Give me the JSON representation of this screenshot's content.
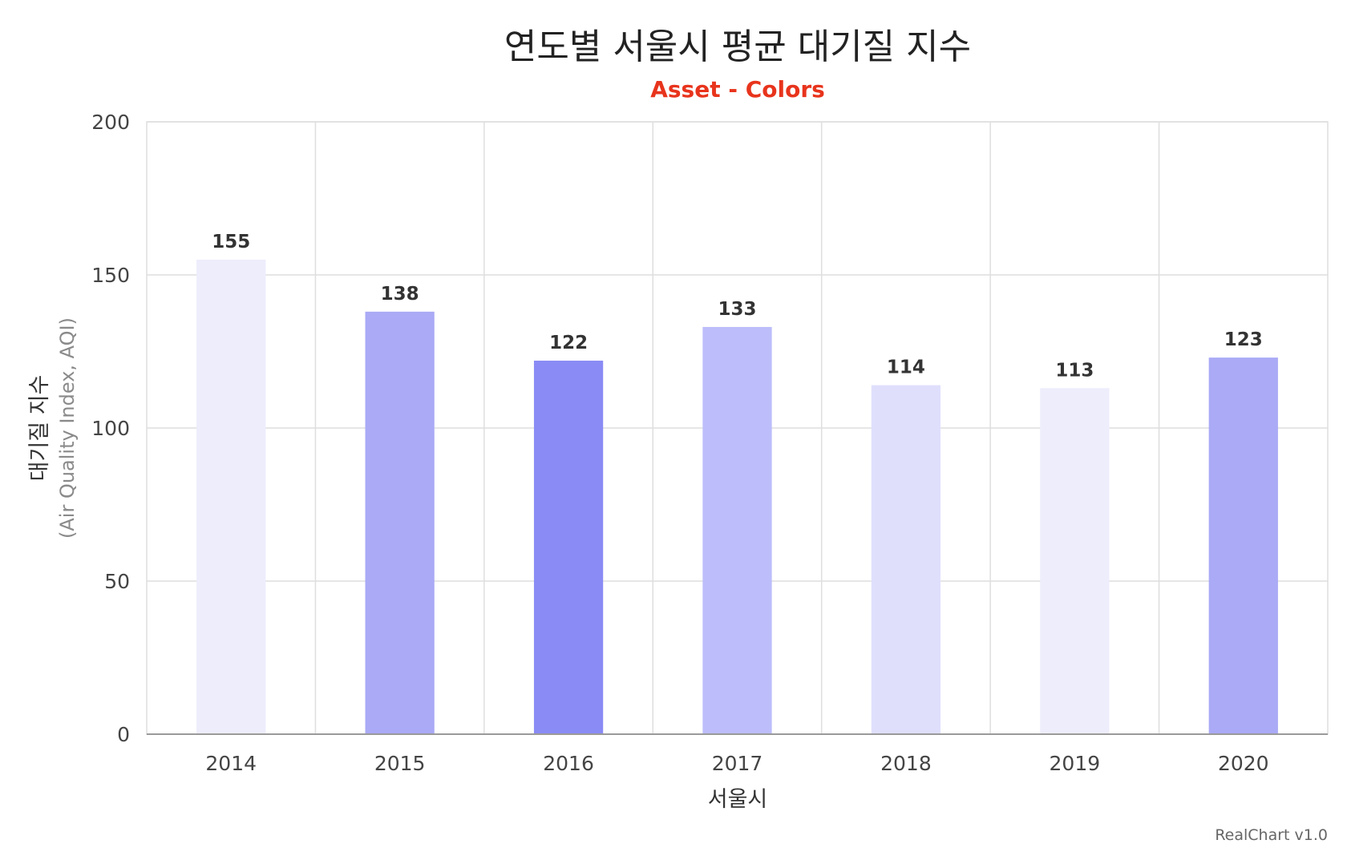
{
  "chart_data": {
    "type": "bar",
    "title": "연도별 서울시 평균 대기질 지수",
    "subtitle": "Asset - Colors",
    "categories": [
      "2014",
      "2015",
      "2016",
      "2017",
      "2018",
      "2019",
      "2020"
    ],
    "values": [
      155,
      138,
      122,
      133,
      114,
      113,
      123
    ],
    "bar_colors": [
      "#ededfc",
      "#aaaaf6",
      "#8a8bf5",
      "#bcbdfa",
      "#dfdffc",
      "#ededfc",
      "#aaaaf6"
    ],
    "xlabel": "서울시",
    "ylabel": "대기질 지수",
    "ylabel_sub": "(Air Quality Index, AQI)",
    "ylim": [
      0,
      200
    ],
    "yticks": [
      "0",
      "50",
      "100",
      "150",
      "200"
    ],
    "grid": true,
    "data_labels": true
  },
  "credit": "RealChart v1.0",
  "colors": {
    "subtitle": "#e8341c"
  }
}
